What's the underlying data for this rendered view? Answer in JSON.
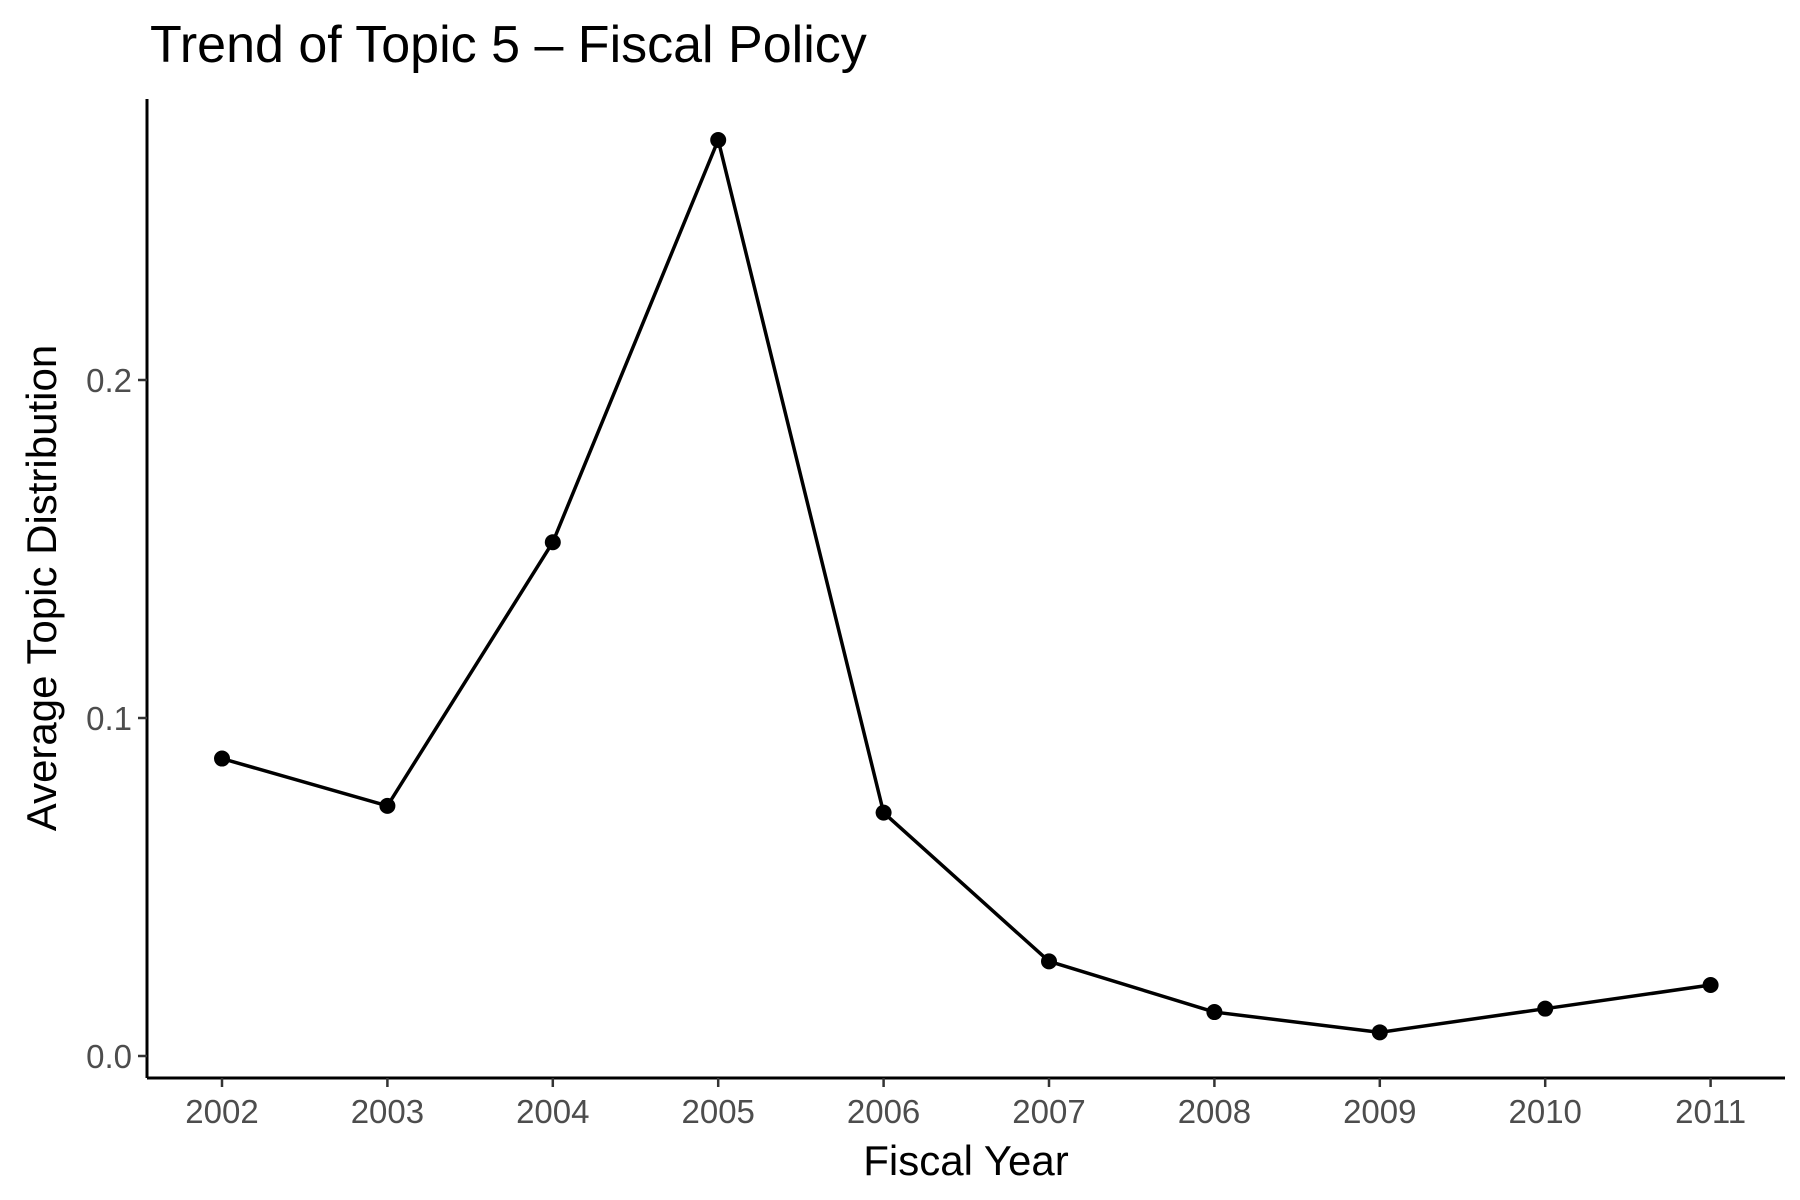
{
  "chart_data": {
    "type": "line",
    "title": "Trend of Topic 5 – Fiscal Policy",
    "xlabel": "Fiscal Year",
    "ylabel": "Average Topic Distribution",
    "x": [
      "2002",
      "2003",
      "2004",
      "2005",
      "2006",
      "2007",
      "2008",
      "2009",
      "2010",
      "2011"
    ],
    "y_ticks": [
      {
        "value": 0.0,
        "label": "0.0"
      },
      {
        "value": 0.1,
        "label": "0.1"
      },
      {
        "value": 0.2,
        "label": "0.2"
      }
    ],
    "series": [
      {
        "values": [
          0.088,
          0.074,
          0.152,
          0.271,
          0.072,
          0.028,
          0.013,
          0.007,
          0.014,
          0.021
        ],
        "color": "#000000"
      }
    ],
    "ylim": [
      -0.006,
      0.284
    ],
    "grid": false,
    "legend": "none"
  }
}
